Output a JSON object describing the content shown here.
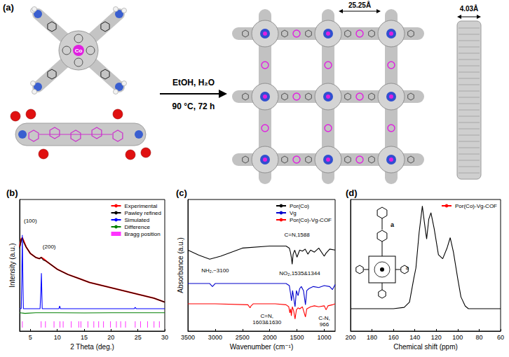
{
  "scheme": {
    "label": "(a)",
    "metal": "Co",
    "conditions": [
      "EtOH, H₂O",
      "90 °C, 72 h"
    ],
    "pore_size": "25.25Å",
    "layer_spacing": "4.03Å"
  },
  "chart_data": [
    {
      "type": "line",
      "title": "(b)",
      "x_label": "2 Theta (deg.)",
      "y_label": "Intensity (a.u.)",
      "xlim": [
        3,
        30
      ],
      "xticks": [
        5,
        10,
        15,
        20,
        25,
        30
      ],
      "ylim": [
        0,
        100
      ],
      "tick_labels": "x",
      "grid": false,
      "legend": "upper right",
      "series": [
        {
          "name": "Experimental",
          "color": "#ff0000",
          "x": [
            3,
            3.3,
            3.5,
            3.8,
            4.2,
            5,
            6,
            6.7,
            7,
            7.4,
            8,
            9,
            10,
            12,
            14,
            16,
            18,
            20,
            22,
            24,
            26,
            28,
            30
          ],
          "values": [
            64,
            70,
            71,
            68,
            64,
            59,
            56,
            55,
            56,
            55,
            53,
            50,
            47,
            43,
            40,
            37,
            35,
            33,
            31,
            29,
            27,
            25,
            22
          ]
        },
        {
          "name": "Pawley refined",
          "color": "#000000",
          "x": [
            3,
            3.3,
            3.5,
            3.8,
            4.2,
            5,
            6,
            6.7,
            7,
            7.4,
            8,
            9,
            10,
            12,
            14,
            16,
            18,
            20,
            22,
            24,
            26,
            28,
            30
          ],
          "values": [
            63,
            69,
            71,
            67,
            64,
            59,
            56,
            55,
            56,
            54,
            53,
            50,
            47,
            43,
            40,
            37,
            35,
            33,
            31,
            29,
            27,
            25,
            22
          ]
        },
        {
          "name": "Simulated",
          "color": "#0000ff",
          "x": [
            3,
            3.3,
            3.4,
            3.5,
            3.6,
            3.7,
            4,
            6.8,
            6.95,
            7.05,
            7.2,
            10.3,
            10.45,
            10.6,
            24.3,
            24.5,
            24.7,
            30
          ],
          "values": [
            17,
            17,
            40,
            73,
            40,
            17,
            17,
            17,
            30,
            44,
            17,
            17,
            19,
            17,
            17,
            18,
            17,
            17
          ]
        },
        {
          "name": "Difference",
          "color": "#008000",
          "x": [
            3,
            4,
            6,
            10,
            15,
            20,
            25,
            30
          ],
          "values": [
            14,
            13.5,
            14,
            14,
            13.8,
            14,
            14,
            14
          ]
        },
        {
          "name": "Bragg position",
          "color": "#ff00ff",
          "type": "scatter",
          "marker": "vline",
          "x": [
            3.5,
            7.0,
            7.8,
            9.4,
            10.5,
            11.1,
            12.6,
            14.0,
            14.4,
            15.7,
            16.8,
            17.7,
            18.6,
            19.9,
            21.0,
            21.8,
            22.7,
            24.5,
            25.5,
            26.8,
            28.0,
            29.0
          ],
          "values": [
            5,
            5,
            5,
            5,
            5,
            5,
            5,
            5,
            5,
            5,
            5,
            5,
            5,
            5,
            5,
            5,
            5,
            5,
            5,
            5,
            5,
            5
          ]
        }
      ],
      "annotations": [
        {
          "text": "(100)",
          "x": 5,
          "y": 84
        },
        {
          "text": "(200)",
          "x": 8.5,
          "y": 64
        }
      ]
    },
    {
      "type": "line",
      "title": "(c)",
      "x_label": "Wavenumber (cm⁻¹)",
      "y_label": "Absorbance (a.u.)",
      "xlim": [
        3500,
        800
      ],
      "xticks": [
        3500,
        3000,
        2500,
        2000,
        1500,
        1000
      ],
      "ylim": [
        0,
        130
      ],
      "tick_labels": "x",
      "grid": false,
      "legend": "upper right",
      "series": [
        {
          "name": "Por(Co)",
          "color": "#000000",
          "x": [
            3500,
            3300,
            3100,
            2900,
            2700,
            2500,
            2000,
            1700,
            1640,
            1620,
            1600,
            1588,
            1570,
            1540,
            1500,
            1450,
            1400,
            1350,
            1300,
            1250,
            1180,
            1100,
            1000,
            966,
            900,
            800
          ],
          "values": [
            80,
            75,
            71,
            74,
            78,
            82,
            84,
            84,
            82,
            78,
            72,
            66,
            76,
            80,
            73,
            80,
            79,
            81,
            76,
            80,
            78,
            82,
            74,
            77,
            81,
            80
          ]
        },
        {
          "name": "Vg",
          "color": "#0000cc",
          "x": [
            3500,
            3100,
            3050,
            3000,
            2500,
            2000,
            1700,
            1640,
            1620,
            1600,
            1580,
            1535,
            1510,
            1480,
            1450,
            1420,
            1380,
            1344,
            1320,
            1280,
            1200,
            1100,
            1000,
            900,
            850,
            800
          ],
          "values": [
            47,
            47,
            44,
            47,
            47,
            47,
            47,
            45,
            38,
            30,
            40,
            24,
            40,
            35,
            42,
            44,
            40,
            26,
            40,
            42,
            44,
            43,
            45,
            44,
            41,
            46
          ]
        },
        {
          "name": "Por(Co)-Vg-COF",
          "color": "#ff0000",
          "x": [
            3500,
            3000,
            2400,
            2360,
            2340,
            2300,
            1900,
            1700,
            1650,
            1630,
            1615,
            1603,
            1585,
            1560,
            1535,
            1510,
            1480,
            1450,
            1400,
            1344,
            1320,
            1250,
            1180,
            1100,
            1000,
            966,
            930,
            850,
            800
          ],
          "values": [
            27,
            27,
            26,
            23,
            25,
            27,
            27,
            26,
            24,
            18,
            22,
            15,
            24,
            20,
            12,
            21,
            23,
            22,
            24,
            14,
            22,
            24,
            25,
            24,
            25,
            21,
            25,
            26,
            27
          ]
        }
      ],
      "annotations": [
        {
          "text": "NH₂,~3100",
          "x": 3000,
          "y": 60
        },
        {
          "text": "C=N,1588",
          "x": 1500,
          "y": 95
        },
        {
          "text": "NO₂,1535&1344",
          "x": 1450,
          "y": 57
        },
        {
          "text": "C=N,\n1603&1630",
          "x": 2050,
          "y": 12
        },
        {
          "text": "C-N,\n966",
          "x": 1000,
          "y": 10
        }
      ]
    },
    {
      "type": "line",
      "title": "(d)",
      "x_label": "Chemical shift (ppm)",
      "xlim": [
        200,
        60
      ],
      "xticks": [
        200,
        180,
        160,
        140,
        120,
        100,
        80,
        60
      ],
      "ylim": [
        0,
        100
      ],
      "tick_labels": "x",
      "grid": false,
      "legend": "upper right",
      "series": [
        {
          "name": "Por(Co)-Vg-COF",
          "color": "#000000",
          "x": [
            200,
            160,
            150,
            145,
            141,
            139,
            136,
            133,
            131,
            129,
            127,
            125,
            122,
            118,
            114,
            110,
            107,
            104,
            100,
            97,
            93,
            90,
            60
          ],
          "values": [
            17,
            17,
            18,
            22,
            40,
            48,
            75,
            95,
            82,
            70,
            85,
            90,
            78,
            58,
            55,
            63,
            71,
            60,
            40,
            26,
            19,
            17,
            17
          ]
        }
      ],
      "annotations": [
        {
          "text": "a",
          "x": 147,
          "y": 48
        }
      ],
      "inset_label": "a"
    }
  ]
}
